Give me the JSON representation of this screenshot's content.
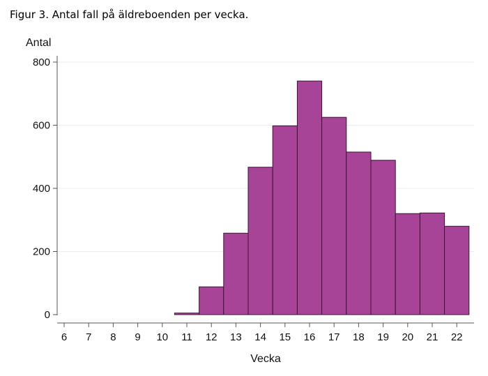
{
  "figure": {
    "caption": "Figur 3. Antal fall på äldreboenden per vecka."
  },
  "colors": {
    "bar_fill": "#a84497",
    "bar_stroke": "#3a1433",
    "grid": "#e6eef2",
    "axis": "#555555"
  },
  "chart_data": {
    "type": "bar",
    "title": "",
    "ylabel": "Antal",
    "xlabel": "Vecka",
    "categories": [
      6,
      7,
      8,
      9,
      10,
      11,
      12,
      13,
      14,
      15,
      16,
      17,
      18,
      19,
      20,
      21,
      22
    ],
    "xtick_labels": [
      "6",
      "7",
      "8",
      "9",
      "10",
      "11",
      "12",
      "13",
      "14",
      "15",
      "16",
      "17",
      "18",
      "19",
      "20",
      "21",
      "22"
    ],
    "ytick_values": [
      0,
      200,
      400,
      600,
      800
    ],
    "ytick_labels": [
      "0",
      "200",
      "400",
      "600",
      "800"
    ],
    "ylim": [
      0,
      800
    ],
    "xlim": [
      5.5,
      22.5
    ],
    "grid": "horizontal",
    "bars": [
      {
        "x": 11,
        "value": 5
      },
      {
        "x": 12,
        "value": 88
      },
      {
        "x": 13,
        "value": 258
      },
      {
        "x": 14,
        "value": 467
      },
      {
        "x": 15,
        "value": 598
      },
      {
        "x": 16,
        "value": 740
      },
      {
        "x": 17,
        "value": 625
      },
      {
        "x": 18,
        "value": 515
      },
      {
        "x": 19,
        "value": 489
      },
      {
        "x": 20,
        "value": 320
      },
      {
        "x": 21,
        "value": 322
      },
      {
        "x": 22,
        "value": 280
      }
    ]
  }
}
